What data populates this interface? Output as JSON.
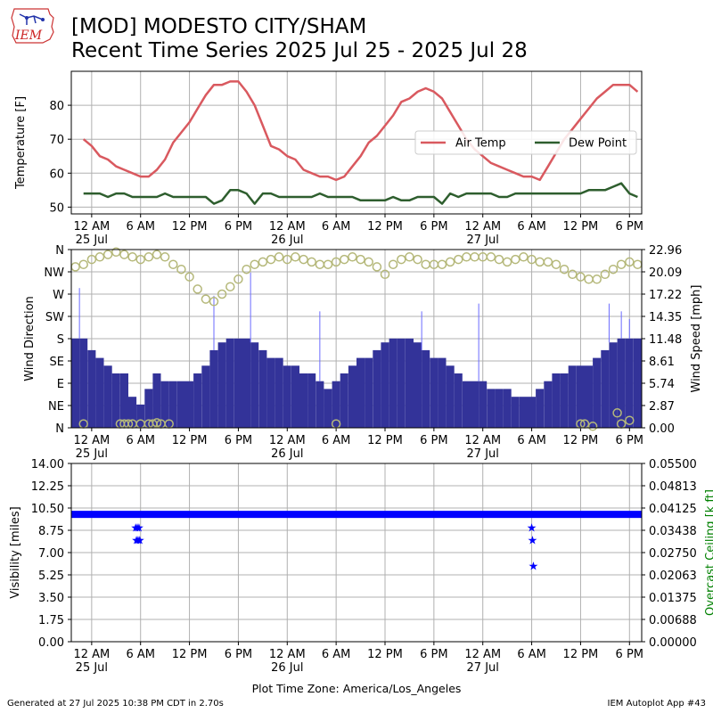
{
  "header": {
    "logo_text": "IEM",
    "title_line1": "[MOD] MODESTO CITY/SHAM",
    "title_line2": "Recent Time Series 2025 Jul 25 - 2025 Jul 28"
  },
  "footer": {
    "generated": "Generated at 27 Jul 2025 10:38 PM CDT in 2.70s",
    "app": "IEM Autoplot App #43",
    "timezone_label": "Plot Time Zone: America/Los_Angeles"
  },
  "colors": {
    "air_temp": "#d9595f",
    "dew_point": "#2e5e2e",
    "wind_bar": "#333399",
    "gust": "#6b6bff",
    "wind_dir": "#b5b87a",
    "visibility": "#0000ff",
    "ceiling_axis": "#008000",
    "grid": "#b0b0b0"
  },
  "chart_data": [
    {
      "type": "line",
      "panel": "temperature",
      "ylabel": "Temperature [F]",
      "ylim": [
        48,
        90
      ],
      "yticks": [
        50,
        60,
        70,
        80
      ],
      "x_unit": "hours from 2025-07-25 00:00 America/Los_Angeles",
      "xlim": [
        -2.5,
        67.5
      ],
      "xtick_labels": [
        "12 AM",
        "6 AM",
        "12 PM",
        "6 PM",
        "12 AM",
        "6 AM",
        "12 PM",
        "6 PM",
        "12 AM",
        "6 AM",
        "12 PM",
        "6 PM"
      ],
      "xtick_date_labels": [
        "25 Jul",
        "",
        "",
        "",
        "26 Jul",
        "",
        "",
        "",
        "27 Jul",
        "",
        "",
        ""
      ],
      "grid": true,
      "legend_position": "right, upper-middle",
      "series": [
        {
          "name": "Air Temp",
          "x": [
            -1,
            0,
            1,
            2,
            3,
            4,
            5,
            6,
            7,
            8,
            9,
            10,
            11,
            12,
            13,
            14,
            15,
            16,
            17,
            18,
            19,
            20,
            21,
            22,
            23,
            24,
            25,
            26,
            27,
            28,
            29,
            30,
            31,
            32,
            33,
            34,
            35,
            36,
            37,
            38,
            39,
            40,
            41,
            42,
            43,
            44,
            45,
            46,
            47,
            48,
            49,
            50,
            51,
            52,
            53,
            54,
            55,
            56,
            57,
            58,
            59,
            60,
            61,
            62,
            63,
            64,
            65,
            66,
            67
          ],
          "values": [
            70,
            68,
            65,
            64,
            62,
            61,
            60,
            59,
            59,
            61,
            64,
            69,
            72,
            75,
            79,
            83,
            86,
            86,
            87,
            87,
            84,
            80,
            74,
            68,
            67,
            65,
            64,
            61,
            60,
            59,
            59,
            58,
            59,
            62,
            65,
            69,
            71,
            74,
            77,
            81,
            82,
            84,
            85,
            84,
            82,
            78,
            74,
            70,
            67,
            65,
            63,
            62,
            61,
            60,
            59,
            59,
            58,
            62,
            66,
            70,
            73,
            76,
            79,
            82,
            84,
            86,
            86,
            86,
            84
          ]
        },
        {
          "name": "Dew Point",
          "x": [
            -1,
            0,
            1,
            2,
            3,
            4,
            5,
            6,
            7,
            8,
            9,
            10,
            11,
            12,
            13,
            14,
            15,
            16,
            17,
            18,
            19,
            20,
            21,
            22,
            23,
            24,
            25,
            26,
            27,
            28,
            29,
            30,
            31,
            32,
            33,
            34,
            35,
            36,
            37,
            38,
            39,
            40,
            41,
            42,
            43,
            44,
            45,
            46,
            47,
            48,
            49,
            50,
            51,
            52,
            53,
            54,
            55,
            56,
            57,
            58,
            59,
            60,
            61,
            62,
            63,
            64,
            65,
            66,
            67
          ],
          "values": [
            54,
            54,
            54,
            53,
            54,
            54,
            53,
            53,
            53,
            53,
            54,
            53,
            53,
            53,
            53,
            53,
            51,
            52,
            55,
            55,
            54,
            51,
            54,
            54,
            53,
            53,
            53,
            53,
            53,
            54,
            53,
            53,
            53,
            53,
            52,
            52,
            52,
            52,
            53,
            52,
            52,
            53,
            53,
            53,
            51,
            54,
            53,
            54,
            54,
            54,
            54,
            53,
            53,
            54,
            54,
            54,
            54,
            54,
            54,
            54,
            54,
            54,
            55,
            55,
            55,
            56,
            57,
            54,
            53
          ]
        }
      ]
    },
    {
      "type": "bar",
      "panel": "wind",
      "ylabel": "Wind Direction",
      "y2label": "Wind Speed [mph]",
      "direction_ticks": [
        "N",
        "NE",
        "E",
        "SE",
        "S",
        "SW",
        "W",
        "NW",
        "N"
      ],
      "direction_ylim": [
        0,
        360
      ],
      "speed_ticks": [
        "0.00",
        "2.87",
        "5.74",
        "8.61",
        "11.48",
        "14.35",
        "17.22",
        "20.09",
        "22.96"
      ],
      "speed_ylim": [
        0,
        22.96
      ],
      "xlim": [
        -2.5,
        67.5
      ],
      "grid": true,
      "series": [
        {
          "name": "speed",
          "x": [
            -2,
            -1,
            0,
            1,
            2,
            3,
            4,
            5,
            6,
            7,
            8,
            9,
            10,
            11,
            12,
            13,
            14,
            15,
            16,
            17,
            18,
            19,
            20,
            21,
            22,
            23,
            24,
            25,
            26,
            27,
            28,
            29,
            30,
            31,
            32,
            33,
            34,
            35,
            36,
            37,
            38,
            39,
            40,
            41,
            42,
            43,
            44,
            45,
            46,
            47,
            48,
            49,
            50,
            51,
            52,
            53,
            54,
            55,
            56,
            57,
            58,
            59,
            60,
            61,
            62,
            63,
            64,
            65,
            66,
            67
          ],
          "values": [
            11.5,
            11.5,
            10,
            9,
            8,
            7,
            7,
            4,
            3,
            5,
            7,
            6,
            6,
            6,
            6,
            7,
            8,
            10,
            11,
            11.5,
            11.5,
            11.5,
            11,
            10,
            9,
            9,
            8,
            8,
            7,
            7,
            6,
            5,
            6,
            7,
            8,
            9,
            9,
            10,
            11,
            11.5,
            11.5,
            11.5,
            11,
            10,
            9,
            9,
            8,
            7,
            6,
            6,
            6,
            5,
            5,
            5,
            4,
            4,
            4,
            5,
            6,
            7,
            7,
            8,
            8,
            8,
            9,
            10,
            11,
            11.5,
            11.5,
            11.5
          ]
        },
        {
          "name": "gust",
          "x": [
            -1.5,
            15,
            19.5,
            28,
            40.5,
            47.5,
            63.5,
            65,
            66
          ],
          "values": [
            18,
            17,
            20,
            15,
            15,
            16,
            16,
            15,
            14
          ]
        },
        {
          "name": "direction",
          "x": [
            -2,
            -1,
            0,
            1,
            2,
            3,
            4,
            5,
            6,
            7,
            8,
            9,
            10,
            11,
            12,
            13,
            14,
            15,
            16,
            17,
            18,
            19,
            20,
            21,
            22,
            23,
            24,
            25,
            26,
            27,
            28,
            29,
            30,
            31,
            32,
            33,
            34,
            35,
            36,
            37,
            38,
            39,
            40,
            41,
            42,
            43,
            44,
            45,
            46,
            47,
            48,
            49,
            50,
            51,
            52,
            53,
            54,
            55,
            56,
            57,
            58,
            59,
            60,
            61,
            62,
            63,
            64,
            65,
            66,
            67
          ],
          "values": [
            325,
            330,
            340,
            345,
            350,
            355,
            350,
            345,
            340,
            345,
            350,
            345,
            330,
            320,
            305,
            280,
            260,
            255,
            270,
            285,
            300,
            320,
            330,
            335,
            340,
            345,
            340,
            345,
            340,
            335,
            330,
            330,
            335,
            340,
            345,
            340,
            335,
            325,
            310,
            330,
            340,
            345,
            340,
            330,
            330,
            330,
            335,
            340,
            345,
            345,
            345,
            345,
            340,
            335,
            340,
            345,
            340,
            335,
            335,
            330,
            320,
            310,
            305,
            300,
            300,
            310,
            320,
            330,
            335,
            330
          ]
        },
        {
          "name": "direction_low",
          "x": [
            -1,
            3.5,
            4,
            4.5,
            5,
            6,
            7,
            7.5,
            8,
            8.5,
            9.5,
            30,
            60,
            60.5,
            61.5,
            64.5,
            65,
            66
          ],
          "values": [
            8,
            8,
            8,
            8,
            8,
            8,
            8,
            8,
            10,
            8,
            8,
            8,
            8,
            8,
            3,
            30,
            8,
            15
          ]
        }
      ]
    },
    {
      "type": "scatter",
      "panel": "visibility",
      "ylabel": "Visibility [miles]",
      "y2label": "Overcast Ceiling [k ft]",
      "ylim": [
        0,
        14
      ],
      "yticks": [
        "0.00",
        "1.75",
        "3.50",
        "5.25",
        "7.00",
        "8.75",
        "10.50",
        "12.25",
        "14.00"
      ],
      "y2lim": [
        0,
        0.055
      ],
      "y2ticks": [
        "0.00000",
        "0.00688",
        "0.01375",
        "0.02063",
        "0.02750",
        "0.03438",
        "0.04125",
        "0.04813",
        "0.05500"
      ],
      "xlim": [
        -2.5,
        67.5
      ],
      "grid": true,
      "series": [
        {
          "name": "visibility_dips",
          "x": [
            5.4,
            5.6,
            5.8,
            5.5,
            5.7,
            5.9,
            54.0,
            54.1,
            54.2
          ],
          "values": [
            9,
            9,
            9,
            8,
            8,
            8,
            9,
            8,
            6
          ]
        }
      ],
      "baseline_visibility": 10
    }
  ]
}
